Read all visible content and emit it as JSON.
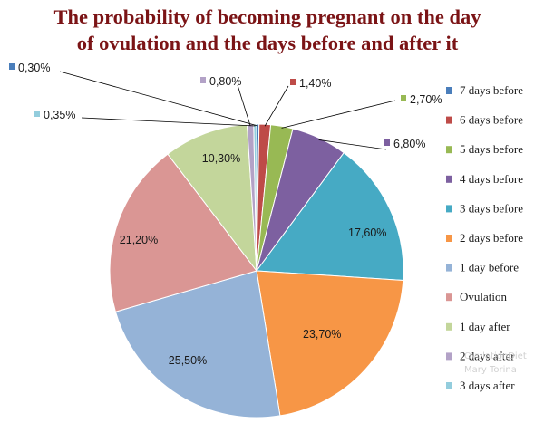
{
  "chart_data": {
    "type": "pie",
    "title_lines": [
      "The probability of becoming pregnant on the day",
      "of ovulation and the days before and after it"
    ],
    "legend_position": "right",
    "slices": [
      {
        "name": "7 days before",
        "value": 0.3,
        "label": "0,30%",
        "color": "#4a7ebb"
      },
      {
        "name": "6 days before",
        "value": 1.4,
        "label": "1,40%",
        "color": "#be4b48"
      },
      {
        "name": "5 days before",
        "value": 2.7,
        "label": "2,70%",
        "color": "#98b954"
      },
      {
        "name": "4 days before",
        "value": 6.8,
        "label": "6,80%",
        "color": "#7d60a0"
      },
      {
        "name": "3 days before",
        "value": 17.6,
        "label": "17,60%",
        "color": "#46aac4"
      },
      {
        "name": "2 days before",
        "value": 23.7,
        "label": "23,70%",
        "color": "#f79646"
      },
      {
        "name": "1 day before",
        "value": 25.5,
        "label": "25,50%",
        "color": "#95b3d7"
      },
      {
        "name": "Ovulation",
        "value": 21.2,
        "label": "21,20%",
        "color": "#da9694"
      },
      {
        "name": "1 day after",
        "value": 10.3,
        "label": "10,30%",
        "color": "#c3d69b"
      },
      {
        "name": "2 days after",
        "value": 0.8,
        "label": "0,80%",
        "color": "#b3a2c7"
      },
      {
        "name": "3 days after",
        "value": 0.35,
        "label": "0,35%",
        "color": "#93cddd"
      }
    ]
  },
  "watermark": {
    "line1": "OvulationDiet",
    "line2": "Mary Torina"
  }
}
